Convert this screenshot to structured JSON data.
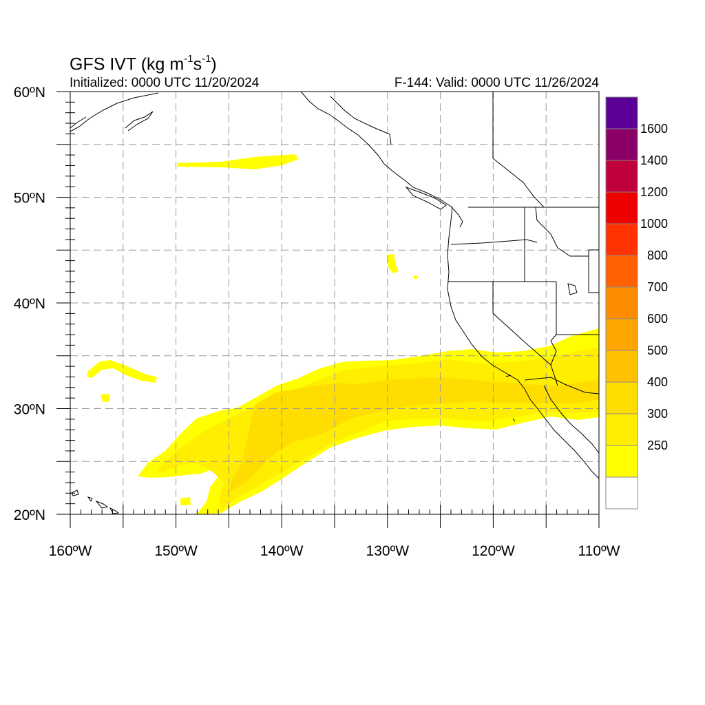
{
  "title": {
    "prefix": "GFS IVT (kg m",
    "exp1": "-1",
    "mid": "s",
    "exp2": "-1",
    "suffix": ")"
  },
  "initialized": "Initialized: 0000 UTC 11/20/2024",
  "valid": "F-144: Valid: 0000 UTC 11/26/2024",
  "axes": {
    "lon_range": [
      -160,
      -110
    ],
    "lat_range": [
      20,
      60
    ],
    "grid_lon_step": 5,
    "grid_lat_step": 5,
    "lat_labels": [
      {
        "lat": 60,
        "text": "60ºN"
      },
      {
        "lat": 50,
        "text": "50ºN"
      },
      {
        "lat": 40,
        "text": "40ºN"
      },
      {
        "lat": 30,
        "text": "30ºN"
      },
      {
        "lat": 20,
        "text": "20ºN"
      }
    ],
    "lon_labels": [
      {
        "lon": -160,
        "text": "160ºW"
      },
      {
        "lon": -150,
        "text": "150ºW"
      },
      {
        "lon": -140,
        "text": "140ºW"
      },
      {
        "lon": -130,
        "text": "130ºW"
      },
      {
        "lon": -120,
        "text": "120ºW"
      },
      {
        "lon": -110,
        "text": "110ºW"
      }
    ]
  },
  "colorbar": {
    "levels": [
      {
        "label": "",
        "color": "#ffffff"
      },
      {
        "label": "250",
        "color": "#ffff00"
      },
      {
        "label": "300",
        "color": "#ffee00"
      },
      {
        "label": "400",
        "color": "#ffdd00"
      },
      {
        "label": "500",
        "color": "#ffc000"
      },
      {
        "label": "600",
        "color": "#ffa500"
      },
      {
        "label": "700",
        "color": "#ff8c00"
      },
      {
        "label": "800",
        "color": "#ff6000"
      },
      {
        "label": "1000",
        "color": "#ff3300"
      },
      {
        "label": "1200",
        "color": "#ee0000"
      },
      {
        "label": "1400",
        "color": "#c0003c"
      },
      {
        "label": "1600",
        "color": "#8b0066"
      },
      {
        "label": "",
        "color": "#5a0096"
      }
    ]
  },
  "colors": {
    "ivt_250": "#ffff00",
    "ivt_300": "#ffee00",
    "ivt_400": "#ffdd00",
    "grid": "#999999",
    "coast": "#000000"
  }
}
